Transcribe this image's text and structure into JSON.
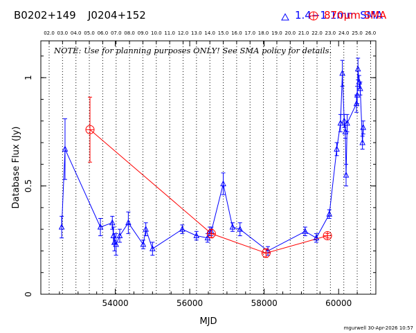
{
  "header": {
    "source_name": "B0202+149",
    "source_alt": "J0204+152",
    "legend_blue": "1.4−1.1mm SMA",
    "legend_red_prefix": "870",
    "legend_red_mu": "μ",
    "legend_red_suffix": "m SMA"
  },
  "note": "NOTE: Use for planning purposes ONLY!  See SMA policy for details.",
  "footer": "mgurwell 30-Apr-2026 10:57",
  "colors": {
    "blue": "#0000ff",
    "red": "#ff0000",
    "axis": "#000000"
  },
  "chart_data": {
    "type": "scatter",
    "xlabel": "MJD",
    "ylabel": "Database Flux (Jy)",
    "xlim": [
      52000,
      61000
    ],
    "ylim": [
      0,
      1.17
    ],
    "x_ticks": [
      "54000",
      "56000",
      "58000",
      "60000"
    ],
    "y_ticks": [
      "0",
      "0.5",
      "1"
    ],
    "top_axis_ticks": [
      "02.0",
      "03.0",
      "04.0",
      "05.0",
      "06.0",
      "07.0",
      "08.0",
      "09.0",
      "10.0",
      "11.0",
      "12.0",
      "13.0",
      "14.0",
      "15.0",
      "16.0",
      "17.0",
      "18.0",
      "19.0",
      "20.0",
      "21.0",
      "22.0",
      "23.0",
      "24.0",
      "25.0",
      "26.0"
    ],
    "series": [
      {
        "name": "1.4−1.1mm SMA",
        "marker": "triangle",
        "points": [
          {
            "x": 52560,
            "y": 0.31,
            "err": 0.05
          },
          {
            "x": 52650,
            "y": 0.67,
            "err": 0.14
          },
          {
            "x": 53600,
            "y": 0.31,
            "err": 0.04
          },
          {
            "x": 53920,
            "y": 0.33,
            "err": 0.03
          },
          {
            "x": 53950,
            "y": 0.27,
            "err": 0.04
          },
          {
            "x": 53980,
            "y": 0.24,
            "err": 0.04
          },
          {
            "x": 54020,
            "y": 0.23,
            "err": 0.05
          },
          {
            "x": 54120,
            "y": 0.27,
            "err": 0.03
          },
          {
            "x": 54350,
            "y": 0.33,
            "err": 0.05
          },
          {
            "x": 54750,
            "y": 0.23,
            "err": 0.02
          },
          {
            "x": 54820,
            "y": 0.3,
            "err": 0.03
          },
          {
            "x": 55000,
            "y": 0.21,
            "err": 0.03
          },
          {
            "x": 55800,
            "y": 0.3,
            "err": 0.02
          },
          {
            "x": 56180,
            "y": 0.27,
            "err": 0.02
          },
          {
            "x": 56480,
            "y": 0.26,
            "err": 0.02
          },
          {
            "x": 56540,
            "y": 0.29,
            "err": 0.02
          },
          {
            "x": 56580,
            "y": 0.29,
            "err": 0.02
          },
          {
            "x": 56900,
            "y": 0.51,
            "err": 0.05
          },
          {
            "x": 57150,
            "y": 0.31,
            "err": 0.02
          },
          {
            "x": 57350,
            "y": 0.3,
            "err": 0.03
          },
          {
            "x": 58100,
            "y": 0.2,
            "err": 0.02
          },
          {
            "x": 59100,
            "y": 0.29,
            "err": 0.02
          },
          {
            "x": 59400,
            "y": 0.26,
            "err": 0.02
          },
          {
            "x": 59750,
            "y": 0.37,
            "err": 0.02
          },
          {
            "x": 59950,
            "y": 0.67,
            "err": 0.03
          },
          {
            "x": 60050,
            "y": 0.79,
            "err": 0.04
          },
          {
            "x": 60100,
            "y": 1.02,
            "err": 0.06
          },
          {
            "x": 60150,
            "y": 0.8,
            "err": 0.03
          },
          {
            "x": 60180,
            "y": 0.75,
            "err": 0.03
          },
          {
            "x": 60200,
            "y": 0.55,
            "err": 0.05
          },
          {
            "x": 60230,
            "y": 0.79,
            "err": 0.04
          },
          {
            "x": 60480,
            "y": 0.88,
            "err": 0.04
          },
          {
            "x": 60500,
            "y": 0.92,
            "err": 0.04
          },
          {
            "x": 60520,
            "y": 1.04,
            "err": 0.05
          },
          {
            "x": 60550,
            "y": 0.98,
            "err": 0.03
          },
          {
            "x": 60580,
            "y": 0.95,
            "err": 0.03
          },
          {
            "x": 60640,
            "y": 0.7,
            "err": 0.03
          },
          {
            "x": 60660,
            "y": 0.77,
            "err": 0.03
          }
        ]
      },
      {
        "name": "870μm SMA",
        "marker": "circle-plus",
        "points": [
          {
            "x": 53320,
            "y": 0.76,
            "err": 0.15
          },
          {
            "x": 56580,
            "y": 0.28,
            "err": 0.02
          },
          {
            "x": 58050,
            "y": 0.19,
            "err": 0.02
          },
          {
            "x": 59700,
            "y": 0.27,
            "err": 0.01
          }
        ]
      }
    ]
  }
}
